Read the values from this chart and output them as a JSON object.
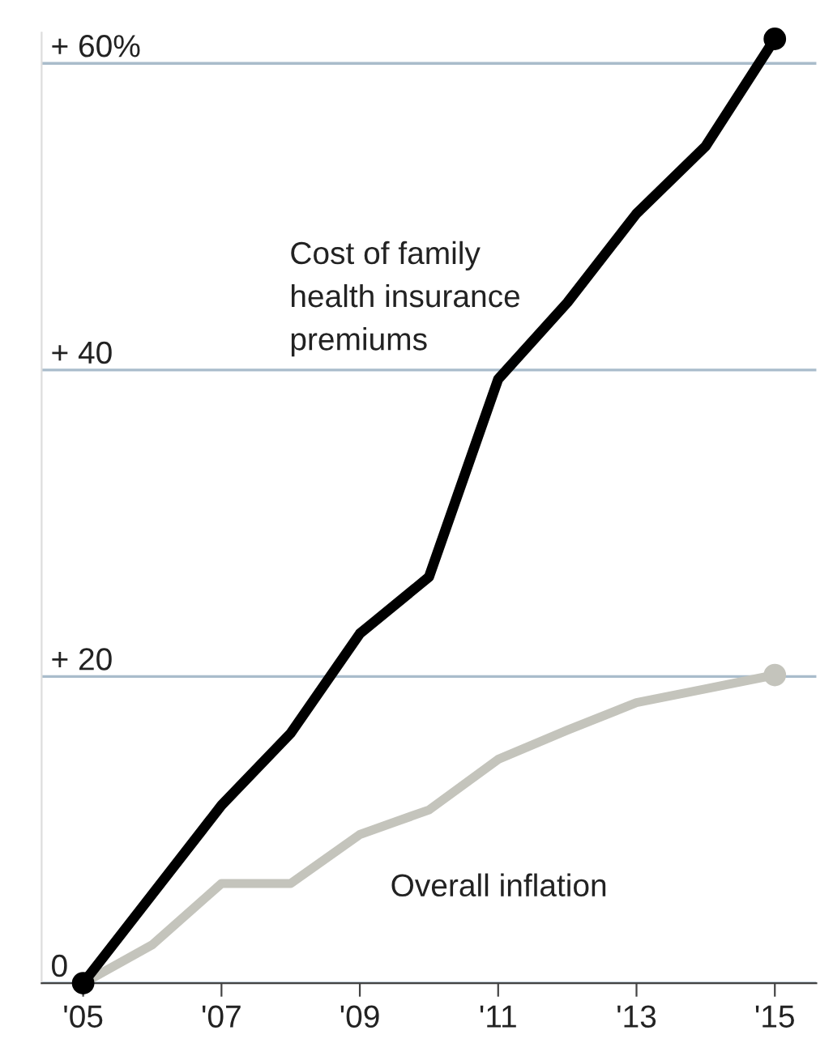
{
  "chart_data": {
    "type": "line",
    "x": [
      2005,
      2006,
      2007,
      2008,
      2009,
      2010,
      2011,
      2012,
      2013,
      2014,
      2015
    ],
    "series": [
      {
        "name": "Cost of family\nhealth insurance\npremiums",
        "color": "#000000",
        "values": [
          0,
          5.8,
          11.6,
          16.3,
          22.8,
          26.5,
          39.4,
          44.4,
          50.2,
          54.6,
          61.6
        ]
      },
      {
        "name": "Overall inflation",
        "color": "#c4c4bc",
        "values": [
          0,
          2.5,
          6.5,
          6.5,
          9.7,
          11.3,
          14.6,
          16.5,
          18.3,
          19.2,
          20.1
        ]
      }
    ],
    "xlim": [
      2004.4,
      2015.6
    ],
    "xticks": [
      {
        "value": 2005,
        "label": "'05"
      },
      {
        "value": 2007,
        "label": "'07"
      },
      {
        "value": 2009,
        "label": "'09"
      },
      {
        "value": 2011,
        "label": "'11"
      },
      {
        "value": 2013,
        "label": "'13"
      },
      {
        "value": 2015,
        "label": "'15"
      }
    ],
    "ylim": [
      0,
      62
    ],
    "yticks": [
      0,
      {
        "value": 20,
        "label": "+ 20"
      },
      {
        "value": 40,
        "label": "+ 40"
      },
      {
        "value": 60,
        "label": "+ 60%"
      }
    ],
    "grid": "y",
    "legend": false,
    "line_style": "solid"
  }
}
